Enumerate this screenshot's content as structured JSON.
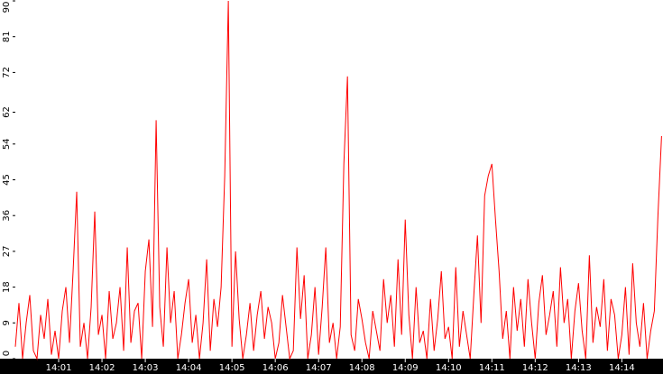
{
  "chart_data": {
    "type": "line",
    "x": [
      0,
      5,
      10,
      15,
      20,
      25,
      30,
      35,
      40,
      45,
      50,
      55,
      60,
      65,
      70,
      75,
      80,
      85,
      90,
      95,
      100,
      105,
      110,
      115,
      120,
      125,
      130,
      135,
      140,
      145,
      150,
      155,
      160,
      165,
      170,
      175,
      180,
      185,
      190,
      195,
      200,
      205,
      210,
      215,
      220,
      225,
      230,
      235,
      240,
      245,
      250,
      255,
      260,
      265,
      270,
      275,
      280,
      285,
      290,
      295,
      300,
      305,
      310,
      315,
      320,
      325,
      330,
      335,
      340,
      345,
      350,
      355,
      360,
      365,
      370,
      375,
      380,
      385,
      390,
      395,
      400,
      405,
      410,
      415,
      420,
      425,
      430,
      435,
      440,
      445,
      450,
      455,
      460,
      465,
      470,
      475,
      480,
      485,
      490,
      495,
      500,
      505,
      510,
      515,
      520,
      525,
      530,
      535,
      540,
      545,
      550,
      555,
      560,
      565,
      570,
      575,
      580,
      585,
      590,
      595,
      600,
      605,
      610,
      615,
      620,
      625,
      630,
      635,
      640,
      645,
      650,
      655,
      660,
      665,
      670,
      675,
      680,
      685,
      690,
      695,
      700,
      705,
      710,
      715,
      720,
      725,
      730,
      735,
      740,
      745,
      750,
      755,
      760,
      765,
      770,
      775,
      780,
      785,
      790,
      795,
      800,
      805,
      810,
      815,
      820,
      825,
      830,
      835,
      840,
      845,
      850,
      855,
      860,
      865,
      870,
      875,
      880,
      885,
      890,
      895
    ],
    "series": [
      {
        "color": "#ff0000",
        "values": [
          3,
          14,
          0,
          9,
          16,
          2,
          0,
          11,
          5,
          15,
          1,
          7,
          0,
          12,
          18,
          4,
          22,
          42,
          3,
          9,
          0,
          13,
          37,
          6,
          11,
          0,
          17,
          5,
          9,
          18,
          2,
          28,
          4,
          12,
          14,
          0,
          22,
          30,
          8,
          60,
          13,
          3,
          28,
          9,
          17,
          0,
          6,
          14,
          20,
          4,
          11,
          0,
          9,
          25,
          2,
          15,
          8,
          18,
          46,
          90,
          3,
          27,
          10,
          0,
          6,
          14,
          2,
          11,
          17,
          5,
          13,
          9,
          0,
          4,
          16,
          8,
          0,
          2,
          28,
          10,
          21,
          0,
          6,
          18,
          1,
          13,
          28,
          4,
          9,
          0,
          8,
          49,
          71,
          6,
          2,
          15,
          10,
          4,
          0,
          12,
          7,
          2,
          20,
          9,
          16,
          3,
          25,
          6,
          35,
          11,
          0,
          18,
          4,
          7,
          0,
          15,
          2,
          10,
          22,
          5,
          8,
          0,
          23,
          3,
          12,
          6,
          0,
          16,
          31,
          9,
          41,
          46,
          49,
          35,
          22,
          5,
          12,
          0,
          18,
          7,
          15,
          3,
          20,
          9,
          0,
          14,
          21,
          6,
          11,
          17,
          3,
          23,
          9,
          15,
          0,
          12,
          19,
          7,
          0,
          26,
          4,
          13,
          8,
          20,
          2,
          15,
          11,
          0,
          6,
          18,
          1,
          24,
          9,
          3,
          14,
          0,
          7,
          12,
          36,
          56
        ]
      }
    ],
    "xlim": [
      0,
      897
    ],
    "xticks": [
      {
        "value": 60,
        "label": "14:01"
      },
      {
        "value": 120,
        "label": "14:02"
      },
      {
        "value": 180,
        "label": "14:03"
      },
      {
        "value": 240,
        "label": "14:04"
      },
      {
        "value": 300,
        "label": "14:05"
      },
      {
        "value": 360,
        "label": "14:06"
      },
      {
        "value": 420,
        "label": "14:07"
      },
      {
        "value": 480,
        "label": "14:08"
      },
      {
        "value": 540,
        "label": "14:09"
      },
      {
        "value": 600,
        "label": "14:10"
      },
      {
        "value": 660,
        "label": "14:11"
      },
      {
        "value": 720,
        "label": "14:12"
      },
      {
        "value": 780,
        "label": "14:13"
      },
      {
        "value": 840,
        "label": "14:14"
      }
    ],
    "ylim": [
      0,
      90
    ],
    "yticks": [
      0,
      9,
      18,
      27,
      36,
      45,
      54,
      62,
      72,
      81,
      90
    ]
  }
}
